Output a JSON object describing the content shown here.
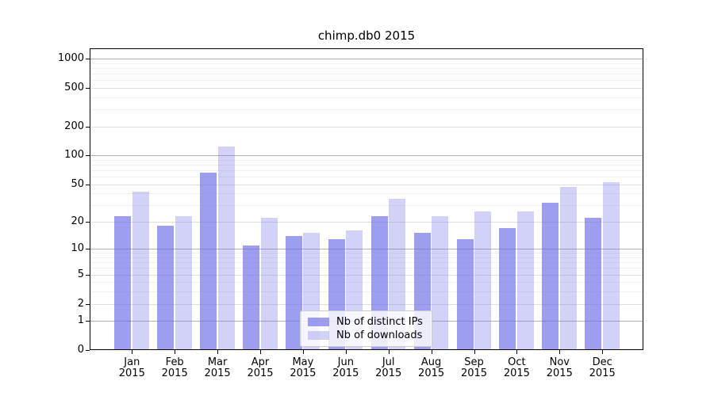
{
  "title": "chimp.db0 2015",
  "chart_data": {
    "type": "bar",
    "categories": [
      "Jan",
      "Feb",
      "Mar",
      "Apr",
      "May",
      "Jun",
      "Jul",
      "Aug",
      "Sep",
      "Oct",
      "Nov",
      "Dec"
    ],
    "year": "2015",
    "series": [
      {
        "name": "Nb of distinct IPs",
        "values": [
          23,
          18,
          66,
          11,
          14,
          13,
          23,
          15,
          13,
          17,
          32,
          22
        ]
      },
      {
        "name": "Nb of downloads",
        "values": [
          42,
          23,
          124,
          22,
          15,
          16,
          35,
          23,
          26,
          26,
          47,
          53
        ]
      }
    ],
    "title": "chimp.db0 2015",
    "xlabel": "",
    "ylabel": "",
    "yscale": "log1p",
    "y_ticks": [
      0,
      1,
      2,
      5,
      10,
      20,
      50,
      100,
      200,
      500,
      1000
    ],
    "ylim": [
      0,
      1280
    ],
    "grid": true,
    "legend_position": "lower center"
  },
  "legend": {
    "items": [
      {
        "label": "Nb of distinct IPs",
        "swatch": "dark-bar-color"
      },
      {
        "label": "Nb of downloads",
        "swatch": "light-bar-color"
      }
    ]
  },
  "colors": {
    "bar_base": "#6a6ae8",
    "bar_dark_alpha": 0.65,
    "bar_light_alpha": 0.3,
    "grid_decade": "#b3b3b3",
    "grid_labeled": "#e0e0e0",
    "grid_minor": "#f0f0f0",
    "axis": "#000000",
    "background": "#ffffff"
  }
}
